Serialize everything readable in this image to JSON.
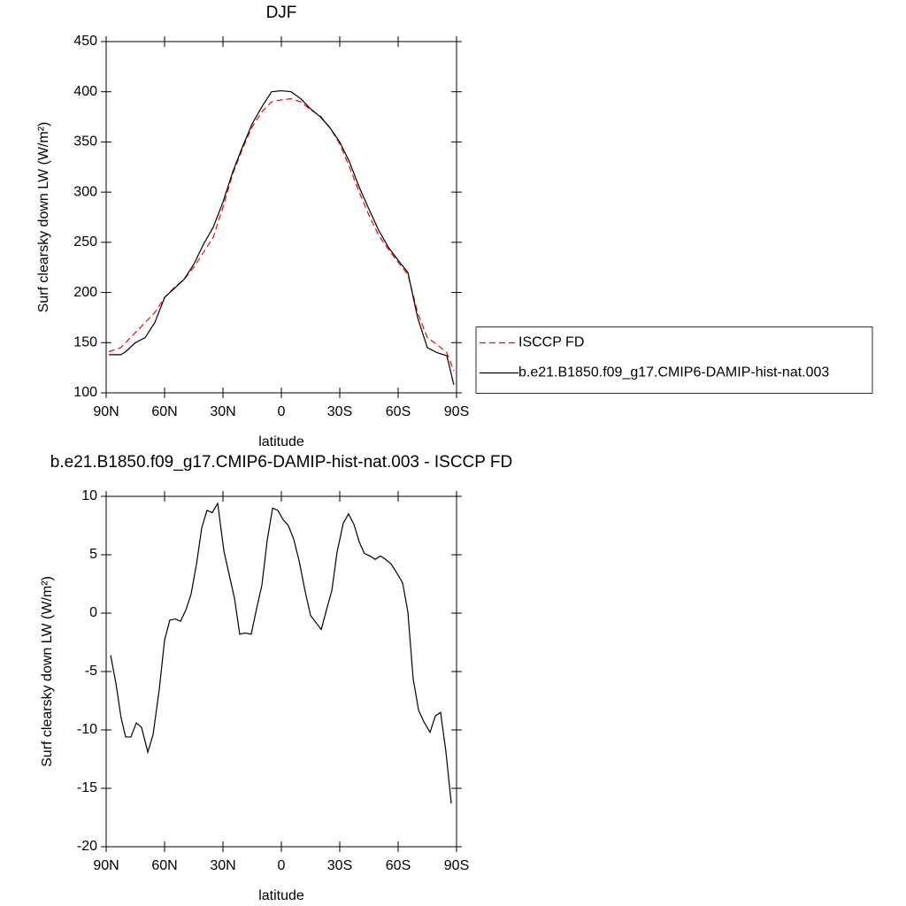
{
  "chart_data": [
    {
      "type": "line",
      "title": "DJF",
      "x_label": "latitude",
      "y_label": "Surf clearsky down LW (W/m²)",
      "x": [
        88.6,
        82.5,
        80,
        75,
        70,
        65,
        60,
        55,
        50,
        45,
        40,
        35,
        30,
        25,
        20,
        15,
        10,
        5,
        0,
        -5,
        -10,
        -15,
        -20,
        -25,
        -30,
        -35,
        -40,
        -45,
        -50,
        -55,
        -60,
        -65,
        -70,
        -75,
        -80,
        -85,
        -88.6
      ],
      "series": [
        {
          "name": "ISCCP FD",
          "color": "#ff0000",
          "linestyle": "dashed",
          "values": [
            141,
            145,
            150,
            160,
            170,
            180,
            195,
            205,
            213,
            225,
            240,
            255,
            285,
            318,
            343,
            365,
            380,
            390,
            392,
            393,
            390,
            382,
            376,
            364,
            348,
            325,
            300,
            277,
            257,
            243,
            230,
            218,
            180,
            155,
            148,
            140,
            122
          ]
        },
        {
          "name": "b.e21.B1850.f09_g17.CMIP6-DAMIP-hist-nat.003",
          "color": "#000000",
          "linestyle": "solid",
          "values": [
            138,
            138,
            141,
            150,
            155,
            170,
            195,
            204,
            213,
            228,
            248,
            265,
            290,
            320,
            345,
            368,
            385,
            400,
            401,
            400,
            393,
            383,
            375,
            364,
            350,
            330,
            305,
            283,
            262,
            245,
            232,
            220,
            175,
            145,
            140,
            137,
            108
          ]
        }
      ],
      "xlim": [
        90,
        -90
      ],
      "xticks": [
        {
          "value": 90,
          "label": "90N"
        },
        {
          "value": 60,
          "label": "60N"
        },
        {
          "value": 30,
          "label": "30N"
        },
        0,
        {
          "value": -30,
          "label": "30S"
        },
        {
          "value": -60,
          "label": "60S"
        },
        {
          "value": -90,
          "label": "90S"
        }
      ],
      "ylim": [
        100,
        450
      ],
      "yticks": [
        100,
        150,
        200,
        250,
        300,
        350,
        400,
        450
      ],
      "legend": "right"
    },
    {
      "type": "line",
      "title": "b.e21.B1850.f09_g17.CMIP6-DAMIP-hist-nat.003 - ISCCP FD",
      "x_label": "latitude",
      "y_label": "Surf clearsky down LW (W/m²)",
      "x": [
        87.7,
        85,
        82.3,
        80,
        77.3,
        74.5,
        71.8,
        68.6,
        65.9,
        62.7,
        60,
        57.3,
        54.5,
        51.8,
        49,
        46.4,
        43.6,
        40.9,
        38.2,
        35.5,
        32.7,
        29.5,
        26.8,
        24,
        21.4,
        18.6,
        15.5,
        12.7,
        10,
        7.3,
        4.5,
        1.8,
        -0.9,
        -3.6,
        -6.4,
        -9.1,
        -12.3,
        -15,
        -17.7,
        -20.5,
        -23.2,
        -25.9,
        -28.6,
        -31.8,
        -34.5,
        -37.3,
        -40,
        -42.7,
        -45.5,
        -48.2,
        -50.9,
        -53.6,
        -56.4,
        -59.1,
        -62.3,
        -65,
        -67.7,
        -70.5,
        -73.2,
        -76.4,
        -79.1,
        -81.8,
        -84.5,
        -87.3
      ],
      "series": [
        {
          "color": "#000000",
          "linestyle": "solid",
          "values": [
            -3.6,
            -6,
            -9,
            -10.6,
            -10.6,
            -9.4,
            -9.8,
            -11.9,
            -10.4,
            -6.5,
            -2.3,
            -0.6,
            -0.5,
            -0.7,
            0.3,
            1.6,
            4.2,
            7.3,
            8.8,
            8.6,
            9.4,
            5.3,
            3.3,
            1.2,
            -1.8,
            -1.7,
            -1.8,
            0.4,
            2.4,
            6.2,
            9,
            8.8,
            8,
            7.5,
            6.3,
            4.5,
            1.8,
            -0.2,
            -0.8,
            -1.4,
            0.3,
            1.9,
            5.2,
            7.7,
            8.5,
            7.6,
            6.1,
            5.1,
            4.9,
            4.6,
            4.9,
            4.6,
            4.2,
            3.5,
            2.6,
            0.1,
            -5.6,
            -8.3,
            -9.3,
            -10.2,
            -8.8,
            -8.5,
            -11.8,
            -16.3
          ]
        }
      ],
      "xlim": [
        90,
        -90
      ],
      "xticks": [
        {
          "value": 90,
          "label": "90N"
        },
        {
          "value": 60,
          "label": "60N"
        },
        {
          "value": 30,
          "label": "30N"
        },
        0,
        {
          "value": -30,
          "label": "30S"
        },
        {
          "value": -60,
          "label": "60S"
        },
        {
          "value": -90,
          "label": "90S"
        }
      ],
      "ylim": [
        -20,
        10
      ],
      "yticks": [
        -20,
        -15,
        -10,
        -5,
        0,
        5,
        10
      ]
    }
  ]
}
